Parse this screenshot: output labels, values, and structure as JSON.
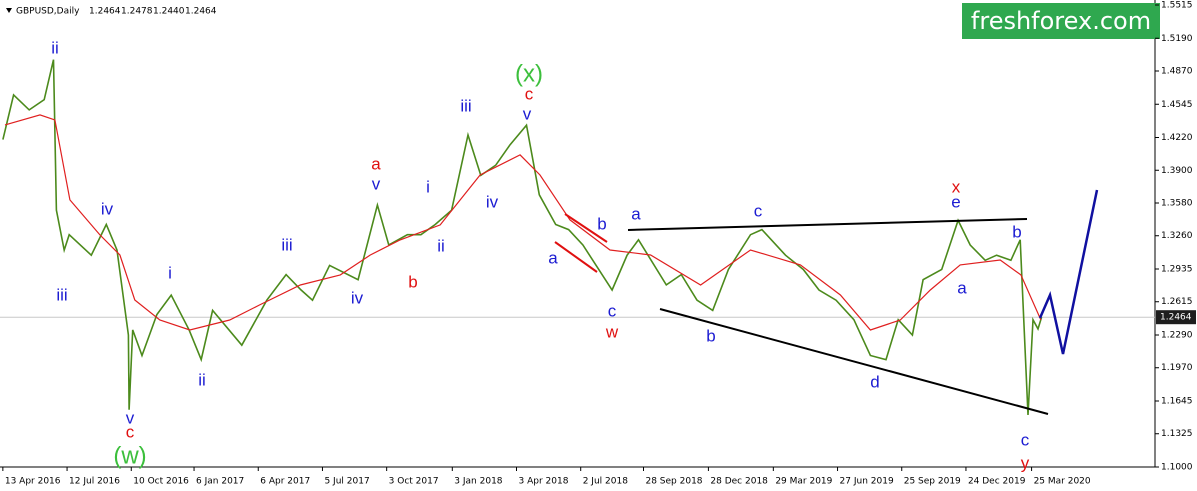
{
  "header": {
    "symbol": "GBPUSD,Daily",
    "ohlc": [
      1.2464,
      1.2478,
      {
        "value": 1.244,
        "label": "1.2440"
      },
      1.2464
    ]
  },
  "brand": "freshforex.com",
  "chart_data": {
    "type": "line",
    "xlim": [
      "2016-04-09",
      "2020-09-14"
    ],
    "ylim": [
      1.1,
      1.5515
    ],
    "xticks": [
      {
        "value": "2016-04-13",
        "label": "13 Apr 2016"
      },
      {
        "value": "2016-07-12",
        "label": "12 Jul 2016"
      },
      {
        "value": "2016-10-10",
        "label": "10 Oct 2016"
      },
      {
        "value": "2017-01-06",
        "label": "6 Jan 2017"
      },
      {
        "value": "2017-04-06",
        "label": "6 Apr 2017"
      },
      {
        "value": "2017-07-05",
        "label": "5 Jul 2017"
      },
      {
        "value": "2017-10-03",
        "label": "3 Oct 2017"
      },
      {
        "value": "2018-01-03",
        "label": "3 Jan 2018"
      },
      {
        "value": "2018-04-03",
        "label": "3 Apr 2018"
      },
      {
        "value": "2018-07-02",
        "label": "2 Jul 2018"
      },
      {
        "value": "2018-09-28",
        "label": "28 Sep 2018"
      },
      {
        "value": "2018-12-28",
        "label": "28 Dec 2018"
      },
      {
        "value": "2019-03-29",
        "label": "29 Mar 2019"
      },
      {
        "value": "2019-06-27",
        "label": "27 Jun 2019"
      },
      {
        "value": "2019-09-25",
        "label": "25 Sep 2019"
      },
      {
        "value": "2019-12-24",
        "label": "24 Dec 2019"
      },
      {
        "value": "2020-03-25",
        "label": "25 Mar 2020"
      }
    ],
    "yticks": [
      1.5515,
      {
        "value": 1.519,
        "label": "1.5190"
      },
      {
        "value": 1.487,
        "label": "1.4870"
      },
      1.4545,
      {
        "value": 1.422,
        "label": "1.4220"
      },
      {
        "value": 1.39,
        "label": "1.3900"
      },
      {
        "value": 1.358,
        "label": "1.3580"
      },
      {
        "value": 1.326,
        "label": "1.3260"
      },
      1.2935,
      1.2615,
      {
        "value": 1.229,
        "label": "1.2290"
      },
      {
        "value": 1.197,
        "label": "1.1970"
      },
      1.1645,
      1.1325,
      {
        "value": 1.1,
        "label": "1.1000"
      }
    ],
    "last_price": 1.2464,
    "series": [
      {
        "color": "#4c8a1c",
        "x": [
          "2016-04-13",
          "2016-04-28",
          "2016-05-20",
          "2016-06-10",
          "2016-06-23",
          "2016-06-27",
          "2016-07-08",
          "2016-07-15",
          "2016-08-15",
          "2016-09-05",
          "2016-09-20",
          "2016-10-06",
          "2016-10-07",
          "2016-10-12",
          "2016-10-25",
          "2016-11-15",
          "2016-12-05",
          "2016-12-30",
          "2017-01-16",
          "2017-02-01",
          "2017-03-14",
          "2017-04-18",
          "2017-05-15",
          "2017-06-05",
          "2017-06-21",
          "2017-07-15",
          "2017-08-24",
          "2017-09-20",
          "2017-10-06",
          "2017-11-01",
          "2017-11-20",
          "2017-12-10",
          "2018-01-02",
          "2018-01-25",
          "2018-02-12",
          "2018-03-05",
          "2018-03-25",
          "2018-04-17",
          "2018-05-05",
          "2018-05-28",
          "2018-06-15",
          "2018-07-05",
          "2018-08-15",
          "2018-09-05",
          "2018-09-21",
          "2018-10-30",
          "2018-11-20",
          "2018-12-12",
          "2019-01-03",
          "2019-01-25",
          "2019-02-25",
          "2019-03-13",
          "2019-04-15",
          "2019-05-10",
          "2019-06-01",
          "2019-06-25",
          "2019-07-20",
          "2019-08-12",
          "2019-09-03",
          "2019-09-20",
          "2019-10-10",
          "2019-10-25",
          "2019-11-20",
          "2019-12-13",
          "2019-12-30",
          "2020-01-20",
          "2020-02-05",
          "2020-02-25",
          "2020-03-09",
          "2020-03-20",
          "2020-03-27",
          "2020-04-03",
          "2020-04-08"
        ],
        "values": [
          1.42,
          1.4636,
          1.449,
          1.459,
          1.498,
          1.351,
          1.312,
          1.327,
          1.307,
          1.337,
          1.312,
          1.229,
          1.156,
          1.234,
          1.209,
          1.249,
          1.268,
          1.234,
          1.205,
          1.253,
          1.219,
          1.263,
          1.288,
          1.273,
          1.263,
          1.297,
          1.283,
          1.356,
          1.317,
          1.327,
          1.327,
          1.337,
          1.351,
          1.4245,
          1.385,
          1.395,
          1.415,
          1.434,
          1.366,
          1.337,
          1.332,
          1.317,
          1.273,
          1.307,
          1.322,
          1.278,
          1.288,
          1.263,
          1.253,
          1.293,
          1.327,
          1.332,
          1.307,
          1.293,
          1.273,
          1.263,
          1.244,
          1.209,
          1.205,
          1.244,
          1.229,
          1.283,
          1.293,
          1.341,
          1.317,
          1.302,
          1.307,
          1.302,
          1.322,
          1.1508,
          1.244,
          1.235,
          1.2464
        ]
      },
      {
        "color": "#e02020",
        "x": [
          "2016-04-16",
          "2016-06-04",
          "2016-06-25",
          "2016-07-16",
          "2016-08-27",
          "2016-09-24",
          "2016-10-15",
          "2016-11-19",
          "2016-12-31",
          "2017-02-25",
          "2017-04-08",
          "2017-06-04",
          "2017-07-30",
          "2017-09-10",
          "2017-10-22",
          "2017-12-17",
          "2018-02-11",
          "2018-04-08",
          "2018-05-06",
          "2018-06-17",
          "2018-08-12",
          "2018-10-08",
          "2018-12-17",
          "2019-02-25",
          "2019-05-06",
          "2019-07-01",
          "2019-08-12",
          "2019-09-23",
          "2019-11-04",
          "2019-12-16",
          "2020-02-10",
          "2020-03-10",
          "2020-04-07"
        ],
        "values": [
          1.4343,
          1.4441,
          1.4392,
          1.361,
          1.3268,
          1.3072,
          1.2632,
          1.2437,
          1.2339,
          1.2437,
          1.2584,
          1.2779,
          1.2877,
          1.3072,
          1.3219,
          1.3366,
          1.3854,
          1.405,
          1.3854,
          1.3415,
          1.3121,
          1.3072,
          1.2779,
          1.3121,
          1.2975,
          1.2681,
          1.2339,
          1.2437,
          1.273,
          1.2975,
          1.3023,
          1.2877,
          1.2437
        ]
      }
    ]
  },
  "annotations": [
    {
      "text": "ii",
      "color": "#1c1cd2"
    },
    {
      "text": "iv",
      "color": "#1c1cd2"
    },
    {
      "text": "iii",
      "color": "#1c1cd2"
    },
    {
      "text": "v",
      "color": "#1c1cd2"
    },
    {
      "text": "c",
      "color": "#e01010"
    },
    {
      "text": "(w)",
      "color": "#3cbf3c"
    },
    {
      "text": "i",
      "color": "#1c1cd2"
    },
    {
      "text": "ii",
      "color": "#1c1cd2"
    },
    {
      "text": "iii",
      "color": "#1c1cd2"
    },
    {
      "text": "iv",
      "color": "#1c1cd2"
    },
    {
      "text": "a",
      "color": "#e01010"
    },
    {
      "text": "v",
      "color": "#1c1cd2"
    },
    {
      "text": "b",
      "color": "#e01010"
    },
    {
      "text": "i",
      "color": "#1c1cd2"
    },
    {
      "text": "ii",
      "color": "#1c1cd2"
    },
    {
      "text": "iii",
      "color": "#1c1cd2"
    },
    {
      "text": "iv",
      "color": "#1c1cd2"
    },
    {
      "text": "(x)",
      "color": "#3cbf3c"
    },
    {
      "text": "c",
      "color": "#e01010"
    },
    {
      "text": "v",
      "color": "#1c1cd2"
    },
    {
      "text": "b",
      "color": "#1c1cd2"
    },
    {
      "text": "a",
      "color": "#1c1cd2"
    },
    {
      "text": "c",
      "color": "#1c1cd2"
    },
    {
      "text": "w",
      "color": "#e01010"
    },
    {
      "text": "a",
      "color": "#1c1cd2"
    },
    {
      "text": "b",
      "color": "#1c1cd2"
    },
    {
      "text": "c",
      "color": "#1c1cd2"
    },
    {
      "text": "d",
      "color": "#1c1cd2"
    },
    {
      "text": "x",
      "color": "#e01010"
    },
    {
      "text": "e",
      "color": "#1c1cd2"
    },
    {
      "text": "a",
      "color": "#1c1cd2"
    },
    {
      "text": "b",
      "color": "#1c1cd2"
    },
    {
      "text": "c",
      "color": "#1c1cd2"
    },
    {
      "text": "y",
      "color": "#e01010"
    }
  ]
}
